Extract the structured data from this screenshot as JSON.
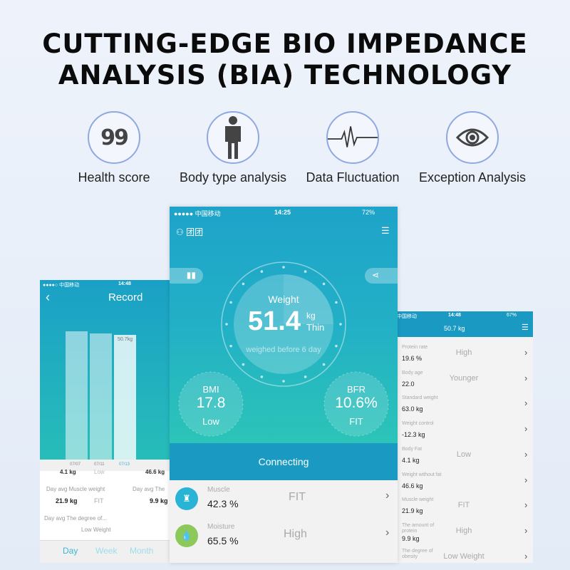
{
  "headline": {
    "line1": "CUTTING-EDGE BIO IMPEDANCE",
    "line2": "ANALYSIS (BIA) TECHNOLOGY"
  },
  "features": [
    {
      "label": "Health score",
      "icon": "99",
      "icon_name": "health-score-icon"
    },
    {
      "label": "Body type analysis",
      "icon_name": "person-icon"
    },
    {
      "label": "Data Fluctuation",
      "icon_name": "pulse-icon"
    },
    {
      "label": "Exception Analysis",
      "icon_name": "eye-icon"
    }
  ],
  "colors": {
    "teal_top": "#1ea3c9",
    "teal_bottom": "#2cc4b8",
    "header_blue": "#1a9ac2",
    "accent_circle": "#8fa9e0",
    "muscle_icon": "#29b3d4",
    "moisture_icon": "#8cc95a"
  },
  "left_phone": {
    "status": {
      "carrier": "●●●●○ 中国移动",
      "time": "14:48"
    },
    "title": "Record",
    "bars": [
      {
        "date": "07/07",
        "value": null
      },
      {
        "date": "07/11",
        "value": null
      },
      {
        "date": "07/13",
        "value": "50.7kg"
      }
    ],
    "bar_levels": [
      1.0,
      0.985,
      0.975
    ],
    "partial_row": {
      "left": "4.1 kg",
      "mid": "Low",
      "right": "46.6 kg"
    },
    "stats": [
      {
        "label": "Day avg Muscle weight",
        "value": "21.9 kg",
        "status": "FIT"
      },
      {
        "label": "Day avg The",
        "value": "9.9 kg"
      }
    ],
    "obesity": {
      "label": "Day avg The degree of...",
      "status": "Low Weight"
    },
    "tabs": [
      "Day",
      "Week",
      "Month"
    ]
  },
  "center_phone": {
    "status": {
      "carrier": "●●●●● 中国移动",
      "time": "14:25",
      "battery": "72%"
    },
    "user": "团团",
    "weight": {
      "label": "Weight",
      "value": "51.4",
      "unit": "kg",
      "status": "Thin",
      "note": "weighed before 6 day"
    },
    "bmi": {
      "label": "BMI",
      "value": "17.8",
      "status": "Low"
    },
    "bfr": {
      "label": "BFR",
      "value": "10.6%",
      "status": "FIT"
    },
    "connecting": "Connecting",
    "rows": [
      {
        "label": "Muscle",
        "value": "42.3 %",
        "status": "FIT"
      },
      {
        "label": "Moisture",
        "value": "65.5 %",
        "status": "High"
      }
    ]
  },
  "right_phone": {
    "status": {
      "carrier": "中国移动",
      "time": "14:48",
      "battery": "67%"
    },
    "title": "50.7 kg",
    "rows": [
      {
        "label": "Protein rate",
        "value": "19.6 %",
        "status": "High"
      },
      {
        "label": "Body age",
        "value": "22.0",
        "status": "Younger"
      },
      {
        "label": "Standard weight",
        "value": "63.0 kg",
        "status": ""
      },
      {
        "label": "Weight control",
        "value": "-12.3 kg",
        "status": ""
      },
      {
        "label": "Body Fat",
        "value": "4.1 kg",
        "status": "Low"
      },
      {
        "label": "Weight without fat",
        "value": "46.6 kg",
        "status": ""
      },
      {
        "label": "Muscle weight",
        "value": "21.9 kg",
        "status": "FIT"
      },
      {
        "label": "The amount of protein",
        "value": "9.9 kg",
        "status": "High"
      },
      {
        "label": "The degree of obesity",
        "value": "",
        "status": "Low Weight"
      }
    ]
  }
}
